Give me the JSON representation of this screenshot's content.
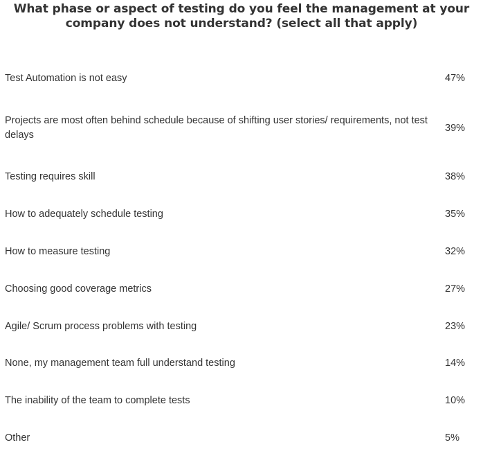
{
  "chart_data": {
    "type": "table",
    "title": "What phase or aspect of testing do you feel the management at your company does not understand? (select all that apply)",
    "categories": [
      "Test Automation is not easy",
      "Projects are most often behind schedule because of shifting user stories/ requirements, not test delays",
      "Testing requires skill",
      "How to adequately schedule testing",
      "How to measure testing",
      "Choosing good coverage metrics",
      "Agile/ Scrum process problems with testing",
      "None, my management team full understand testing",
      "The inability of the team to complete tests",
      "Other"
    ],
    "values": [
      47,
      39,
      38,
      35,
      32,
      27,
      23,
      14,
      10,
      5
    ],
    "value_labels": [
      "47%",
      "39%",
      "38%",
      "35%",
      "32%",
      "27%",
      "23%",
      "14%",
      "10%",
      "5%"
    ],
    "unit": "%"
  }
}
